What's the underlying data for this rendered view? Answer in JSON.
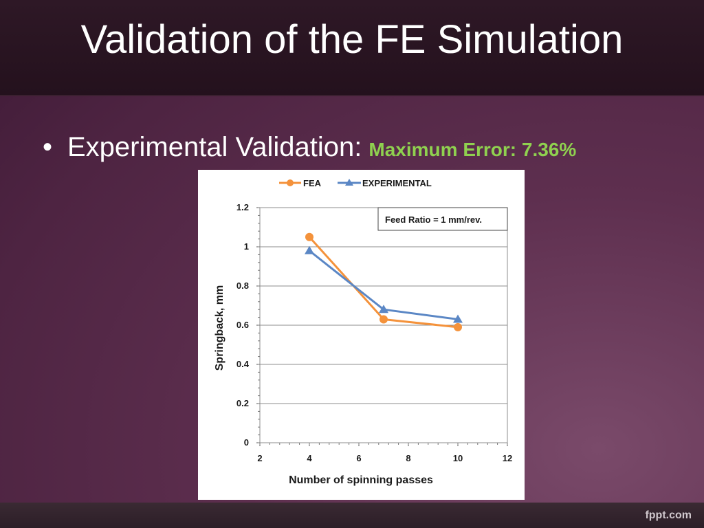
{
  "slide": {
    "title": "Validation of the FE Simulation",
    "bullet_symbol": "•",
    "bullet_text": "Experimental Validation:",
    "highlight_text": "Maximum Error: 7.36%",
    "highlight_color": "#8fd14f"
  },
  "footer": {
    "logo": "fppt.com"
  },
  "chart_data": {
    "type": "line",
    "title": "",
    "xlabel": "Number of spinning passes",
    "ylabel": "Springback, mm",
    "xlim": [
      2,
      12
    ],
    "ylim": [
      0,
      1.2
    ],
    "x_ticks": [
      "2",
      "4",
      "6",
      "8",
      "10",
      "12"
    ],
    "y_ticks": [
      "0",
      "0.2",
      "0.4",
      "0.6",
      "0.8",
      "1",
      "1.2"
    ],
    "grid": true,
    "legend_position": "top",
    "annotation": "Feed Ratio = 1 mm/rev.",
    "series": [
      {
        "name": "FEA",
        "color": "#f4923b",
        "marker": "circle",
        "points": [
          [
            4,
            1.05
          ],
          [
            7,
            0.63
          ],
          [
            10,
            0.59
          ]
        ]
      },
      {
        "name": "EXPERIMENTAL",
        "color": "#5b87c5",
        "marker": "triangle",
        "points": [
          [
            4,
            0.98
          ],
          [
            7,
            0.68
          ],
          [
            10,
            0.63
          ]
        ]
      }
    ]
  }
}
